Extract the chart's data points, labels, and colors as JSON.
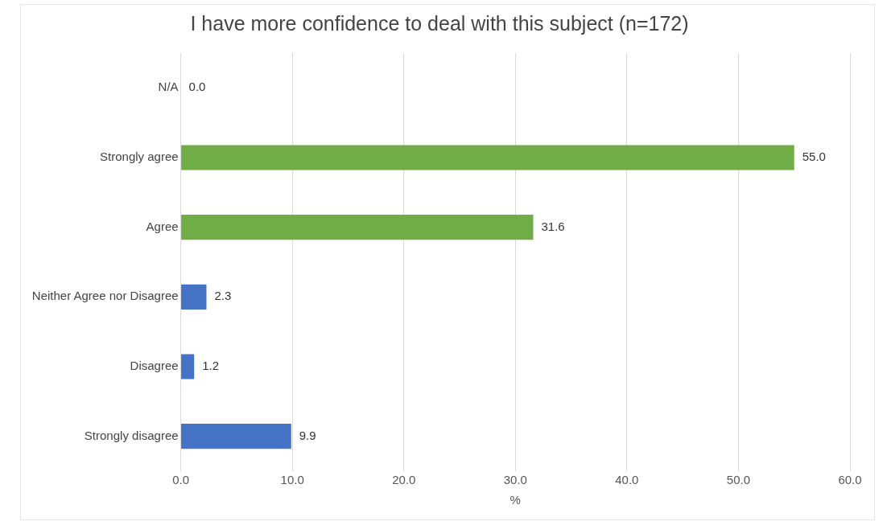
{
  "chart_data": {
    "type": "bar",
    "orientation": "horizontal",
    "title": "I have more confidence to deal with this subject (n=172)",
    "xlabel": "%",
    "categories": [
      "N/A",
      "Strongly agree",
      "Agree",
      "Neither Agree nor Disagree",
      "Disagree",
      "Strongly disagree"
    ],
    "values": [
      0,
      55,
      31.6,
      2.3,
      1.2,
      9.9
    ],
    "colors": [
      "#4472c4",
      "#70ad47",
      "#70ad47",
      "#4472c4",
      "#4472c4",
      "#4472c4"
    ],
    "value_labels": [
      "0.0",
      "55.0",
      "31.6",
      "2.3",
      "1.2",
      "9.9"
    ],
    "xlim": [
      0,
      60
    ],
    "xticks": [
      {
        "value": 0,
        "label": "0.0"
      },
      {
        "value": 10,
        "label": "10.0"
      },
      {
        "value": 20,
        "label": "20.0"
      },
      {
        "value": 30,
        "label": "30.0"
      },
      {
        "value": 40,
        "label": "40.0"
      },
      {
        "value": 50,
        "label": "50.0"
      },
      {
        "value": 60,
        "label": "60.0"
      }
    ],
    "grid": "x"
  }
}
